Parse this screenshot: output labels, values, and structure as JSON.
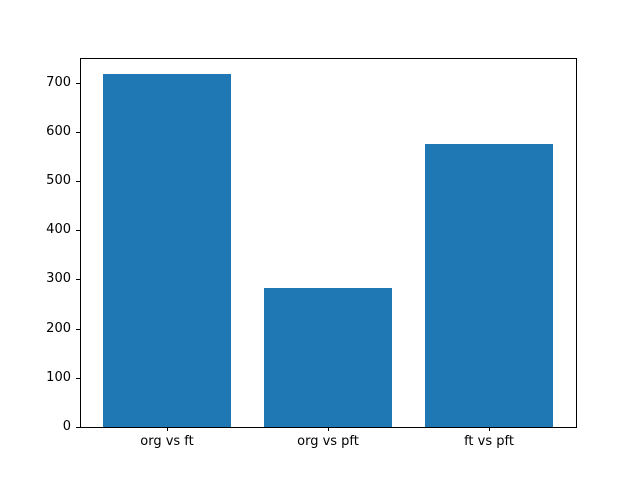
{
  "figure": {
    "background_color": "#ffffff",
    "spine_color": "#000000",
    "text_color": "#000000"
  },
  "chart_data": {
    "type": "bar",
    "title": "",
    "xlabel": "",
    "ylabel": "",
    "categories": [
      "org vs ft",
      "org vs pft",
      "ft vs pft"
    ],
    "values": [
      717,
      283,
      576
    ],
    "yticks": [
      0,
      100,
      200,
      300,
      400,
      500,
      600,
      700
    ],
    "ylim": [
      0,
      750
    ],
    "bar_color": "#1f77b4",
    "bar_width_fraction": 0.8,
    "grid": false,
    "legend": null
  }
}
